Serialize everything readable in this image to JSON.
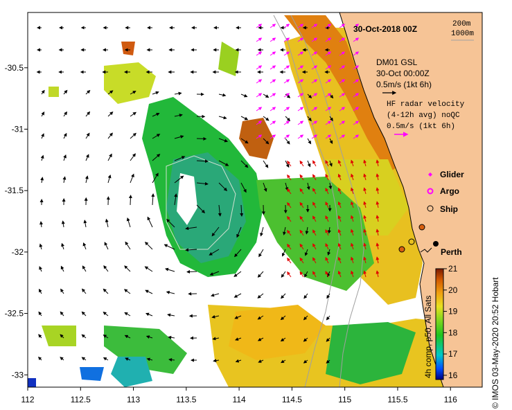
{
  "title": "30-Oct-2018 00Z",
  "isobath_legend": [
    "200m",
    "1000m"
  ],
  "glider_block": {
    "line1": "DM01 GSL",
    "line2": "30-Oct 00:00Z",
    "line3": "0.5m/s (1kt 6h)"
  },
  "hf_block": {
    "line1": "HF radar velocity",
    "line2": "(4-12h avg) noQC",
    "line3": "0.5m/s (1kt 6h)"
  },
  "symbol_legend": [
    {
      "label": "Glider",
      "symbol": "diamond",
      "color": "#ff00ff"
    },
    {
      "label": "Argo",
      "symbol": "circle-ring",
      "color": "#ff00ff"
    },
    {
      "label": "Ship",
      "symbol": "circle-open",
      "color": "#000000"
    }
  ],
  "place_label": "Perth",
  "colorbar": {
    "ticks": [
      "21",
      "20",
      "19",
      "18",
      "17",
      "16"
    ],
    "caption": "4h comp, p50, All Sats",
    "min": 15.8,
    "max": 21,
    "colors": [
      "#00007f",
      "#0050ff",
      "#00c8c8",
      "#1ec41e",
      "#8ad81e",
      "#e8e020",
      "#f0a010",
      "#d25a00",
      "#7a1a00"
    ]
  },
  "x_ticks": [
    "112",
    "112.5",
    "113",
    "113.5",
    "114",
    "114.5",
    "115",
    "115.5",
    "116"
  ],
  "y_ticks": [
    "-30.5",
    "-31",
    "-31.5",
    "-32",
    "-32.5",
    "-33"
  ],
  "map_extent": {
    "lon_min": 112.0,
    "lon_max": 116.3,
    "lat_min": -33.1,
    "lat_max": -30.05
  },
  "credit": "© IMOS 03-May-2020 20:52 Hobart",
  "land_color": "#f6c496",
  "arrow_colors": {
    "model": "#000000",
    "glider": "#ff00ff",
    "hf_radar": "#e00000"
  }
}
